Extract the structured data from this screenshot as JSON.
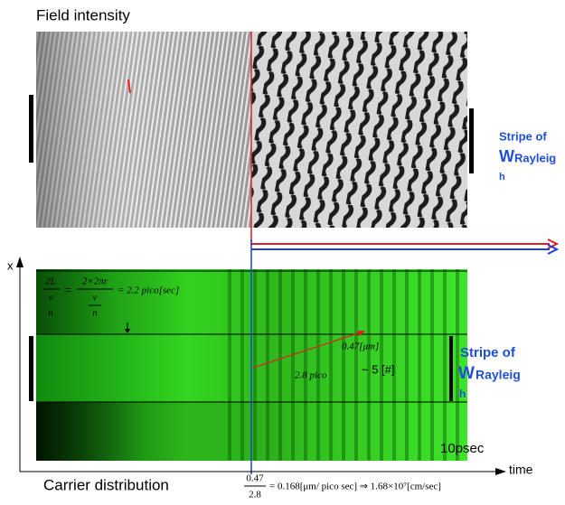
{
  "top_panel": {
    "title": "Field intensity",
    "label": {
      "line1": "Stripe of",
      "w": "W",
      "sub": "Rayleig",
      "sub2": "h"
    }
  },
  "bottom_panel": {
    "title": "Carrier distribution",
    "axis_x": "x",
    "axis_time": "time",
    "duration": "10psec",
    "label": {
      "line1": "Stripe of",
      "w": "W",
      "sub": "Rayleig",
      "sub2": "h"
    },
    "period_formula": {
      "a_num": "2L",
      "a_den": "v",
      "a_den2": "n",
      "eq1": "=",
      "b_num": "2×2πr",
      "b_den": "v",
      "b_den2": "n",
      "result": "= 2.2 pico[sec]"
    },
    "distance": "0.47[μm]",
    "time_span": "2.8 pico",
    "count": "~ 5 [#]",
    "speed_formula": {
      "num": "0.47",
      "den": "2.8",
      "rest": "= 0.168[μm/ pico sec] ⇒ 1.68×10⁷[cm/sec]"
    }
  }
}
